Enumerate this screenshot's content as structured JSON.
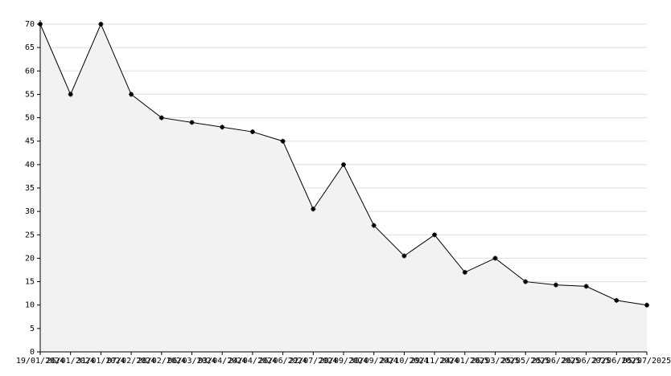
{
  "chart_data": {
    "type": "area",
    "categories": [
      "19/01/2024",
      "26/01/2024",
      "31/01/2024",
      "07/02/2024",
      "28/02/2024",
      "06/03/2024",
      "03/04/2024",
      "24/04/2024",
      "26/06/2024",
      "22/07/2024",
      "20/09/2024",
      "30/09/2024",
      "24/10/2024",
      "29/11/2024",
      "24/01/2025",
      "26/03/2025",
      "25/05/2025",
      "25/06/2025",
      "26/06/2025",
      "27/06/2025",
      "05/07/2025"
    ],
    "values": [
      70,
      55,
      70,
      55,
      50,
      49,
      48,
      47,
      45,
      30.5,
      40,
      27,
      20.5,
      25,
      17,
      20,
      15,
      14.3,
      14,
      11,
      10
    ],
    "color": "#000000",
    "fill": "#f2f2f2",
    "ylim": [
      0,
      70
    ],
    "yticks": [
      0,
      5,
      10,
      15,
      20,
      25,
      30,
      35,
      40,
      45,
      50,
      55,
      60,
      65,
      70
    ],
    "grid": true
  }
}
